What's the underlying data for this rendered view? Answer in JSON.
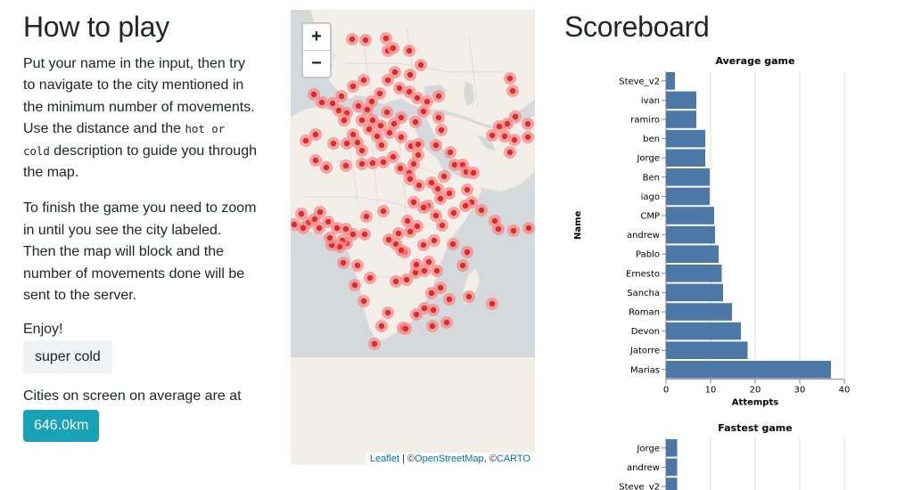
{
  "howto": {
    "title": "How to play",
    "p1_before": "Put your name in the input, then try to navigate to the city mentioned in the minimum number of movements. Use the distance and the ",
    "p1_code": "hot or cold",
    "p1_after": " description to guide you through the map.",
    "p2": "To finish the game you need to zoom in until you see the city labeled. Then the map will block and the number of movements done will be sent to the server.",
    "enjoy": "Enjoy!",
    "temperature": "super cold",
    "cities_label": "Cities on screen on average are at",
    "distance": "646.0km"
  },
  "map": {
    "zoom_in": "+",
    "zoom_out": "−",
    "attribution": {
      "leaflet": "Leaflet",
      "sep": " | ©",
      "osm": "OpenStreetMap",
      "comma": ", ©",
      "carto": "CARTO"
    },
    "colors": {
      "land": "#f2efe9",
      "water": "#d4dadc",
      "marker_outer": "#f28c8c",
      "marker_inner": "#e8261f"
    },
    "markers": [
      [
        69,
        33
      ],
      [
        84,
        34
      ],
      [
        107,
        32
      ],
      [
        109,
        46
      ],
      [
        115,
        43
      ],
      [
        133,
        46
      ],
      [
        146,
        62
      ],
      [
        117,
        70
      ],
      [
        134,
        73
      ],
      [
        109,
        79
      ],
      [
        82,
        79
      ],
      [
        70,
        86
      ],
      [
        100,
        94
      ],
      [
        122,
        88
      ],
      [
        133,
        92
      ],
      [
        142,
        99
      ],
      [
        153,
        103
      ],
      [
        166,
        97
      ],
      [
        149,
        114
      ],
      [
        140,
        126
      ],
      [
        124,
        121
      ],
      [
        116,
        128
      ],
      [
        101,
        130
      ],
      [
        92,
        124
      ],
      [
        108,
        115
      ],
      [
        76,
        108
      ],
      [
        86,
        112
      ],
      [
        91,
        103
      ],
      [
        57,
        97
      ],
      [
        47,
        105
      ],
      [
        54,
        113
      ],
      [
        63,
        116
      ],
      [
        60,
        124
      ],
      [
        80,
        124
      ],
      [
        88,
        134
      ],
      [
        70,
        140
      ],
      [
        35,
        104
      ],
      [
        26,
        95
      ],
      [
        28,
        140
      ],
      [
        17,
        147
      ],
      [
        48,
        150
      ],
      [
        63,
        150
      ],
      [
        75,
        149
      ],
      [
        80,
        158
      ],
      [
        97,
        142
      ],
      [
        102,
        152
      ],
      [
        111,
        138
      ],
      [
        124,
        143
      ],
      [
        135,
        153
      ],
      [
        143,
        163
      ],
      [
        138,
        173
      ],
      [
        133,
        183
      ],
      [
        143,
        151
      ],
      [
        166,
        121
      ],
      [
        169,
        135
      ],
      [
        163,
        152
      ],
      [
        179,
        160
      ],
      [
        184,
        174
      ],
      [
        193,
        174
      ],
      [
        197,
        182
      ],
      [
        205,
        183
      ],
      [
        172,
        187
      ],
      [
        165,
        201
      ],
      [
        168,
        212
      ],
      [
        178,
        206
      ],
      [
        198,
        202
      ],
      [
        203,
        216
      ],
      [
        214,
        225
      ],
      [
        229,
        237
      ],
      [
        233,
        246
      ],
      [
        243,
        128
      ],
      [
        252,
        120
      ],
      [
        240,
        142
      ],
      [
        251,
        146
      ],
      [
        246,
        160
      ],
      [
        266,
        143
      ],
      [
        266,
        128
      ],
      [
        249,
        91
      ],
      [
        246,
        77
      ],
      [
        234,
        131
      ],
      [
        226,
        141
      ],
      [
        28,
        169
      ],
      [
        40,
        177
      ],
      [
        62,
        175
      ],
      [
        80,
        173
      ],
      [
        92,
        172
      ],
      [
        104,
        171
      ],
      [
        115,
        165
      ],
      [
        123,
        178
      ],
      [
        134,
        190
      ],
      [
        144,
        197
      ],
      [
        158,
        194
      ],
      [
        12,
        229
      ],
      [
        20,
        239
      ],
      [
        14,
        245
      ],
      [
        32,
        245
      ],
      [
        42,
        238
      ],
      [
        52,
        245
      ],
      [
        62,
        246
      ],
      [
        70,
        252
      ],
      [
        83,
        252
      ],
      [
        85,
        232
      ],
      [
        104,
        226
      ],
      [
        121,
        251
      ],
      [
        142,
        243
      ],
      [
        131,
        237
      ],
      [
        134,
        249
      ],
      [
        154,
        220
      ],
      [
        163,
        231
      ],
      [
        170,
        242
      ],
      [
        161,
        259
      ],
      [
        149,
        264
      ],
      [
        128,
        272
      ],
      [
        118,
        263
      ],
      [
        110,
        258
      ],
      [
        75,
        287
      ],
      [
        72,
        309
      ],
      [
        89,
        301
      ],
      [
        118,
        305
      ],
      [
        130,
        303
      ],
      [
        140,
        295
      ],
      [
        150,
        293
      ],
      [
        158,
        318
      ],
      [
        168,
        312
      ],
      [
        160,
        337
      ],
      [
        159,
        355
      ],
      [
        175,
        351
      ],
      [
        178,
        325
      ],
      [
        200,
        322
      ],
      [
        226,
        330
      ],
      [
        198,
        272
      ],
      [
        193,
        287
      ],
      [
        155,
        283
      ],
      [
        141,
        286
      ],
      [
        124,
        270
      ],
      [
        109,
        340
      ],
      [
        102,
        355
      ],
      [
        94,
        375
      ],
      [
        82,
        327
      ],
      [
        126,
        357
      ],
      [
        129,
        358
      ],
      [
        141,
        342
      ],
      [
        150,
        335
      ],
      [
        164,
        293
      ],
      [
        182,
        263
      ],
      [
        250,
        248
      ],
      [
        267,
        245
      ],
      [
        138,
        216
      ],
      [
        149,
        222
      ],
      [
        183,
        228
      ],
      [
        196,
        220
      ],
      [
        63,
        262
      ],
      [
        58,
        259
      ],
      [
        55,
        266
      ],
      [
        46,
        264
      ],
      [
        44,
        256
      ],
      [
        59,
        284
      ],
      [
        27,
        235
      ],
      [
        33,
        227
      ],
      [
        4,
        241
      ]
    ]
  },
  "scoreboard": {
    "title": "Scoreboard",
    "charts": [
      {
        "type": "bar",
        "title": "Average game",
        "xlabel": "Attempts",
        "ylabel": "Name",
        "xlim": [
          0,
          40
        ],
        "xticks": [
          0,
          10,
          20,
          30,
          40
        ],
        "grid": true,
        "color": "#4c78a8",
        "categories": [
          "Steve_v2",
          "ivan",
          "ramiro",
          "ben",
          "Jorge",
          "Ben",
          "iago",
          "CMP",
          "andrew",
          "Pablo",
          "Ernesto",
          "Sancha",
          "Roman",
          "Devon",
          "Jatorre",
          "Marias"
        ],
        "values": [
          2,
          6.8,
          6.8,
          8.8,
          8.8,
          9.8,
          9.8,
          10.8,
          11,
          11.8,
          12.5,
          12.8,
          14.8,
          16.8,
          18.3,
          37
        ]
      },
      {
        "type": "bar",
        "title": "Fastest game",
        "categories": [
          "Jorge",
          "andrew",
          "Steve_v2"
        ],
        "values": [
          2.5,
          2.5,
          2.5
        ],
        "xlim": [
          0,
          40
        ],
        "color": "#4c78a8"
      }
    ]
  }
}
